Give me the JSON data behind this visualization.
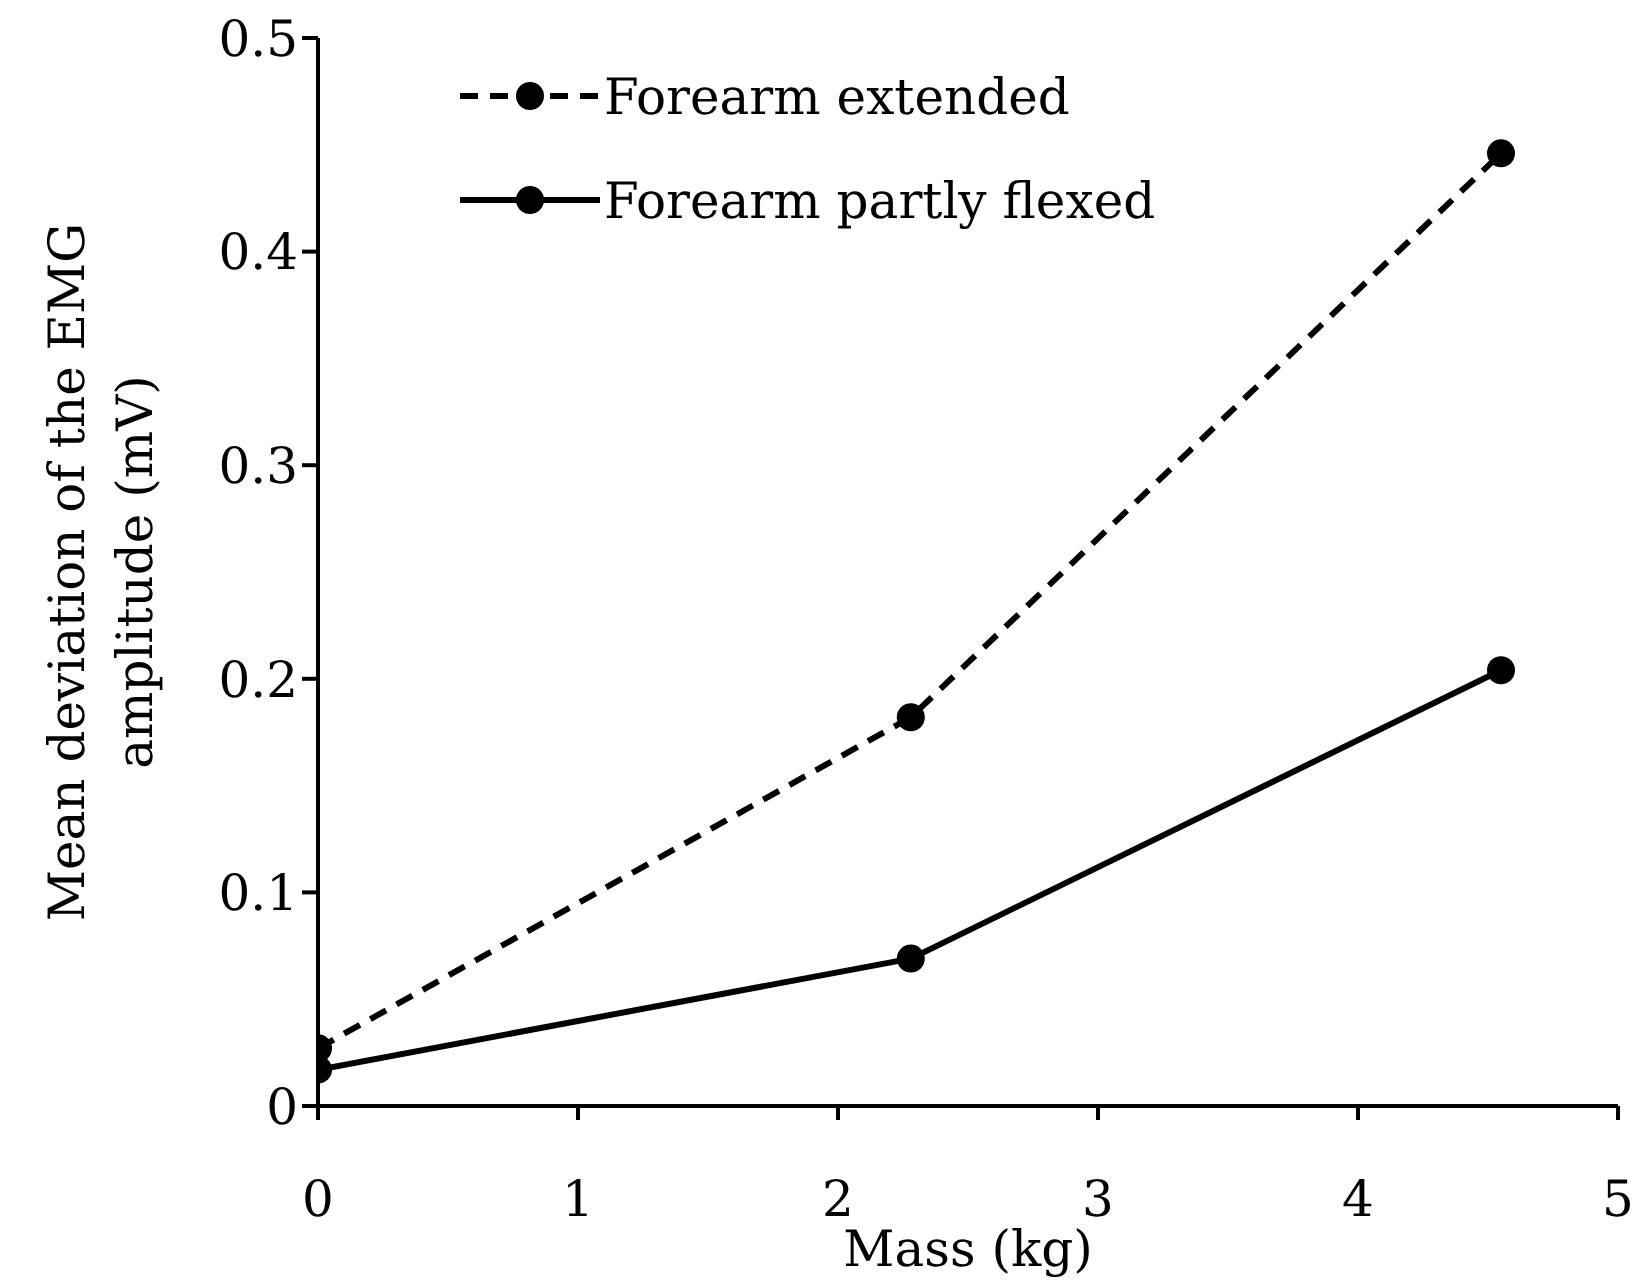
{
  "chart_data": {
    "type": "line",
    "xlabel": "Mass (kg)",
    "ylabel": "Mean deviation of the EMG amplitude (mV)",
    "x": [
      0,
      2.28,
      4.55
    ],
    "series": [
      {
        "name": "Forearm extended",
        "color": "#000000",
        "line_style": "dashed",
        "values": [
          0.027,
          0.182,
          0.446
        ]
      },
      {
        "name": "Forearm partly flexed",
        "color": "#000000",
        "line_style": "solid",
        "values": [
          0.017,
          0.069,
          0.204
        ]
      }
    ],
    "xlim": [
      0,
      5
    ],
    "xticks": [
      0,
      1,
      2,
      3,
      4,
      5
    ],
    "ylim": [
      0,
      0.5
    ],
    "yticks": [
      0,
      0.1,
      0.2,
      0.3,
      0.4,
      0.5
    ],
    "grid": false,
    "legend": "top left",
    "marker": "circle"
  }
}
